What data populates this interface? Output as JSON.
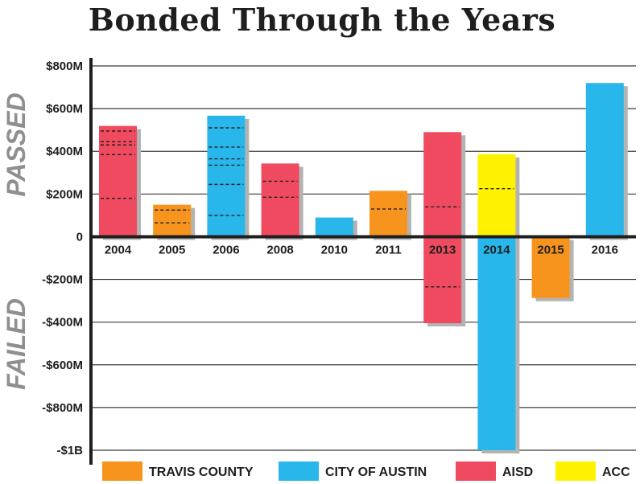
{
  "chart_data": {
    "type": "bar",
    "title": "Bonded Through the Years",
    "categories": [
      "2004",
      "2005",
      "2006",
      "2008",
      "2010",
      "2011",
      "2013",
      "2014",
      "2015",
      "2016"
    ],
    "ylim": [
      -1000,
      800
    ],
    "y_ticks": [
      800,
      600,
      400,
      200,
      0,
      -200,
      -400,
      -600,
      -800,
      -1000
    ],
    "y_tick_labels": [
      "$800M",
      "$600M",
      "$400M",
      "$200M",
      "0",
      "-$200M",
      "-$400M",
      "-$600M",
      "-$800M",
      "-$1B"
    ],
    "section_labels": {
      "passed": "PASSED",
      "failed": "FAILED"
    },
    "grid": true,
    "legend_position": "bottom",
    "series_colors": {
      "Travis County": "#f7941d",
      "City of Austin": "#29b6ea",
      "AISD": "#ef4a5f",
      "ACC": "#fff200"
    },
    "legend": [
      {
        "name": "TRAVIS COUNTY",
        "color": "#f7941d"
      },
      {
        "name": "CITY OF AUSTIN",
        "color": "#29b6ea"
      },
      {
        "name": "AISD",
        "color": "#ef4a5f"
      },
      {
        "name": "ACC",
        "color": "#fff200"
      }
    ],
    "bars": [
      {
        "category": "2004",
        "entity": "AISD",
        "value": 519,
        "dividers": [
          495,
          445,
          430,
          385,
          180
        ]
      },
      {
        "category": "2005",
        "entity": "Travis County",
        "value": 150,
        "dividers": [
          125,
          65
        ]
      },
      {
        "category": "2006",
        "entity": "City of Austin",
        "value": 567,
        "dividers": [
          510,
          420,
          365,
          335,
          245,
          100
        ]
      },
      {
        "category": "2008",
        "entity": "AISD",
        "value": 343,
        "dividers": [
          260,
          185
        ]
      },
      {
        "category": "2010",
        "entity": "City of Austin",
        "value": 90,
        "dividers": []
      },
      {
        "category": "2011",
        "entity": "Travis County",
        "value": 215,
        "dividers": [
          130
        ]
      },
      {
        "category": "2013",
        "entity": "AISD",
        "value": 490,
        "dividers": [
          140
        ]
      },
      {
        "category": "2013",
        "entity": "AISD",
        "value": -405,
        "dividers": [
          -235
        ]
      },
      {
        "category": "2014",
        "entity": "ACC",
        "value": 387,
        "dividers": [
          225
        ]
      },
      {
        "category": "2014",
        "entity": "City of Austin",
        "value": -1000,
        "dividers": []
      },
      {
        "category": "2015",
        "entity": "Travis County",
        "value": -287,
        "dividers": []
      },
      {
        "category": "2016",
        "entity": "City of Austin",
        "value": 720,
        "dividers": []
      }
    ]
  }
}
